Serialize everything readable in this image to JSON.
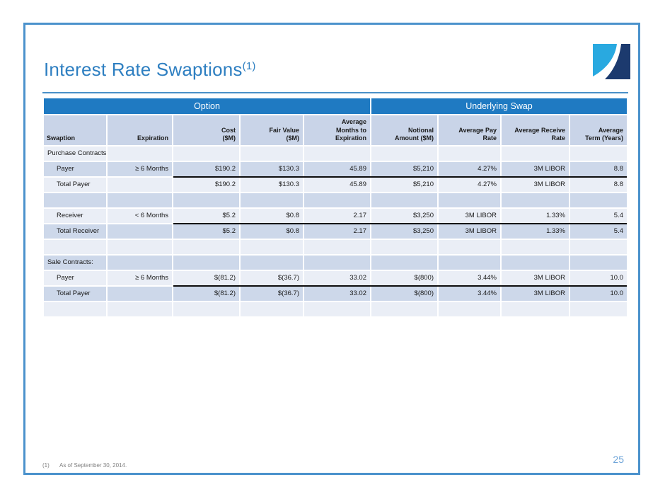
{
  "slide": {
    "title": "Interest Rate Swaptions",
    "title_superscript": "(1)",
    "page_number": "25",
    "footnote": {
      "marker": "(1)",
      "text": "As of September 30, 2014."
    }
  },
  "colors": {
    "title_blue": "#2E7FC1",
    "slide_border_blue": "#4B92CC",
    "group_header_blue": "#1F7AC2",
    "column_header_bg": "#C9D4E8",
    "row_band_dark": "#CDD8EA",
    "row_band_light": "#EAEEF6",
    "total_rule_black": "#0d0d0d",
    "logo_light_blue": "#29A9E0",
    "logo_navy": "#1C3A6E",
    "page_number_blue": "#6EA4D8",
    "footnote_gray": "#7F7F7F"
  },
  "table": {
    "group_headers": [
      {
        "label": "Option",
        "span": 5
      },
      {
        "label": "Underlying Swap",
        "span": 4
      }
    ],
    "columns": [
      "Swaption",
      "Expiration",
      "Cost\n($M)",
      "Fair Value\n($M)",
      "Average\nMonths to\nExpiration",
      "Notional\nAmount ($M)",
      "Average Pay\nRate",
      "Average Receive\nRate",
      "Average\nTerm (Years)"
    ],
    "rows": [
      {
        "type": "section",
        "underline": false,
        "cells": [
          "Purchase Contracts:",
          "",
          "",
          "",
          "",
          "",
          "",
          "",
          ""
        ]
      },
      {
        "type": "data",
        "underline": true,
        "cells": [
          "Payer",
          "≥ 6 Months",
          "$190.2",
          "$130.3",
          "45.89",
          "$5,210",
          "4.27%",
          "3M LIBOR",
          "8.8"
        ]
      },
      {
        "type": "total",
        "underline": false,
        "cells": [
          "Total Payer",
          "",
          "$190.2",
          "$130.3",
          "45.89",
          "$5,210",
          "4.27%",
          "3M LIBOR",
          "8.8"
        ]
      },
      {
        "type": "blank",
        "underline": false,
        "cells": [
          "",
          "",
          "",
          "",
          "",
          "",
          "",
          "",
          ""
        ]
      },
      {
        "type": "data",
        "underline": true,
        "cells": [
          "Receiver",
          "< 6 Months",
          "$5.2",
          "$0.8",
          "2.17",
          "$3,250",
          "3M LIBOR",
          "1.33%",
          "5.4"
        ]
      },
      {
        "type": "total",
        "underline": false,
        "cells": [
          "Total Receiver",
          "",
          "$5.2",
          "$0.8",
          "2.17",
          "$3,250",
          "3M LIBOR",
          "1.33%",
          "5.4"
        ]
      },
      {
        "type": "blank",
        "underline": false,
        "cells": [
          "",
          "",
          "",
          "",
          "",
          "",
          "",
          "",
          ""
        ]
      },
      {
        "type": "section",
        "underline": false,
        "cells": [
          "Sale Contracts:",
          "",
          "",
          "",
          "",
          "",
          "",
          "",
          ""
        ]
      },
      {
        "type": "data",
        "underline": true,
        "cells": [
          "Payer",
          "≥ 6 Months",
          "$(81.2)",
          "$(36.7)",
          "33.02",
          "$(800)",
          "3.44%",
          "3M LIBOR",
          "10.0"
        ]
      },
      {
        "type": "total",
        "underline": false,
        "cells": [
          "Total Payer",
          "",
          "$(81.2)",
          "$(36.7)",
          "33.02",
          "$(800)",
          "3.44%",
          "3M LIBOR",
          "10.0"
        ]
      },
      {
        "type": "blank",
        "underline": false,
        "cells": [
          "",
          "",
          "",
          "",
          "",
          "",
          "",
          "",
          ""
        ]
      }
    ]
  }
}
